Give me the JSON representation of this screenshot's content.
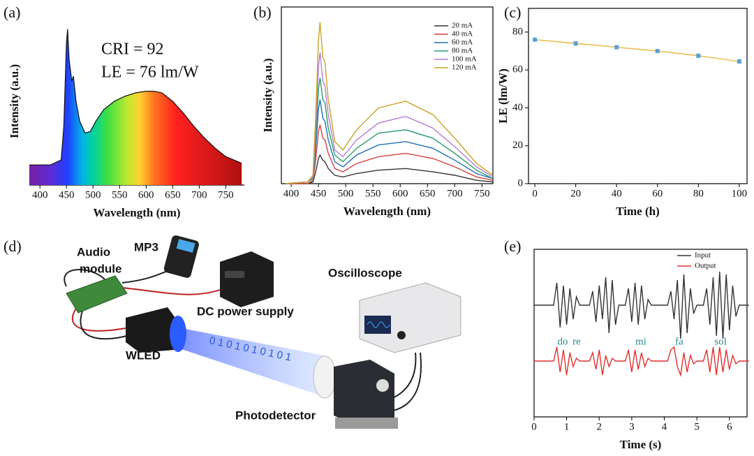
{
  "chart_data": [
    {
      "type": "area",
      "panel_label": "(a)",
      "xlabel": "Wavelength (nm)",
      "ylabel": "Intensity (a.u.)",
      "annotations": [
        "CRI = 92",
        "LE = 76 lm/W"
      ],
      "x": [
        380,
        420,
        440,
        445,
        450,
        452,
        455,
        460,
        463,
        468,
        475,
        485,
        495,
        505,
        520,
        540,
        560,
        580,
        600,
        615,
        630,
        650,
        670,
        690,
        710,
        730,
        750,
        780
      ],
      "values": [
        0.12,
        0.12,
        0.15,
        0.35,
        0.85,
        0.93,
        0.75,
        0.62,
        0.65,
        0.5,
        0.38,
        0.31,
        0.32,
        0.38,
        0.45,
        0.5,
        0.53,
        0.55,
        0.56,
        0.56,
        0.55,
        0.5,
        0.43,
        0.35,
        0.28,
        0.22,
        0.17,
        0.13
      ],
      "xlim": [
        380,
        785
      ],
      "xticks": [
        400,
        450,
        500,
        550,
        600,
        650,
        700,
        750
      ],
      "ylim": [
        0,
        1
      ]
    },
    {
      "type": "line",
      "panel_label": "(b)",
      "xlabel": "Wavelength (nm)",
      "ylabel": "Intensity (a.u.)",
      "legend": "upper right",
      "x": [
        390,
        430,
        440,
        445,
        450,
        453,
        458,
        462,
        468,
        480,
        495,
        520,
        560,
        610,
        660,
        700,
        740,
        770
      ],
      "series": [
        {
          "name": "20 mA",
          "color": "#333333",
          "values": [
            0,
            0,
            0.01,
            0.07,
            0.15,
            0.17,
            0.14,
            0.13,
            0.09,
            0.05,
            0.04,
            0.06,
            0.08,
            0.09,
            0.07,
            0.05,
            0.02,
            0.01
          ]
        },
        {
          "name": "40 mA",
          "color": "#d94040",
          "values": [
            0,
            0,
            0.02,
            0.14,
            0.31,
            0.35,
            0.27,
            0.26,
            0.18,
            0.09,
            0.07,
            0.12,
            0.16,
            0.18,
            0.15,
            0.1,
            0.04,
            0.02
          ]
        },
        {
          "name": "60 mA",
          "color": "#1f6fb4",
          "values": [
            0,
            0.01,
            0.03,
            0.21,
            0.44,
            0.5,
            0.39,
            0.37,
            0.26,
            0.13,
            0.1,
            0.17,
            0.23,
            0.25,
            0.21,
            0.14,
            0.06,
            0.03
          ]
        },
        {
          "name": "80 mA",
          "color": "#2a9d6a",
          "values": [
            0,
            0.01,
            0.03,
            0.26,
            0.56,
            0.63,
            0.5,
            0.48,
            0.33,
            0.17,
            0.13,
            0.21,
            0.3,
            0.32,
            0.27,
            0.18,
            0.08,
            0.03
          ]
        },
        {
          "name": "100 mA",
          "color": "#b57cd6",
          "values": [
            0,
            0.01,
            0.04,
            0.32,
            0.69,
            0.78,
            0.61,
            0.58,
            0.41,
            0.2,
            0.16,
            0.26,
            0.36,
            0.4,
            0.33,
            0.22,
            0.1,
            0.04
          ]
        },
        {
          "name": "120 mA",
          "color": "#c9a227",
          "values": [
            0,
            0.01,
            0.05,
            0.4,
            0.85,
            0.96,
            0.75,
            0.72,
            0.5,
            0.25,
            0.2,
            0.32,
            0.45,
            0.49,
            0.41,
            0.27,
            0.12,
            0.05
          ]
        }
      ],
      "xlim": [
        382,
        770
      ],
      "xticks": [
        400,
        450,
        500,
        550,
        600,
        650,
        700,
        750
      ],
      "ylim": [
        0,
        1.05
      ]
    },
    {
      "type": "line",
      "panel_label": "(c)",
      "xlabel": "Time (h)",
      "ylabel": "LE (lm/W)",
      "x": [
        0,
        20,
        40,
        60,
        80,
        100
      ],
      "values": [
        76,
        74,
        72,
        70,
        67.5,
        64.5
      ],
      "color": "#e8c050",
      "marker_color": "#5aa0d8",
      "xlim": [
        -3.1,
        103.8
      ],
      "xticks": [
        0,
        20,
        40,
        60,
        80,
        100
      ],
      "ylim": [
        0,
        92.5
      ],
      "yticks": [
        0,
        20,
        40,
        60,
        80
      ]
    },
    {
      "type": "line",
      "panel_label": "(e)",
      "xlabel": "Time (s)",
      "legend": "upper right",
      "annotations": [
        "do",
        "re",
        "mi",
        "fa",
        "sol"
      ],
      "x": [
        0,
        0.1,
        0.2,
        0.3,
        0.4,
        0.5,
        0.6,
        0.7,
        0.8,
        0.9,
        1,
        1.1,
        1.2,
        1.3,
        1.4,
        1.5,
        1.6,
        1.7,
        1.8,
        1.9,
        2,
        2.1,
        2.2,
        2.3,
        2.4,
        2.5,
        2.6,
        2.7,
        2.8,
        2.9,
        3,
        3.1,
        3.2,
        3.3,
        3.4,
        3.5,
        3.6,
        3.7,
        3.8,
        3.9,
        4,
        4.1,
        4.2,
        4.3,
        4.4,
        4.5,
        4.6,
        4.7,
        4.8,
        4.9,
        5,
        5.1,
        5.2,
        5.3,
        5.4,
        5.5,
        5.6,
        5.7,
        5.8,
        5.9,
        6,
        6.1,
        6.2,
        6.3,
        6.4,
        6.5,
        6.6
      ],
      "series": [
        {
          "name": "Input",
          "color": "#333333",
          "values": [
            1,
            1,
            1,
            1,
            1,
            1,
            1,
            1.8,
            0.2,
            1.7,
            0.3,
            1.6,
            0.5,
            1.3,
            1,
            1,
            1,
            1,
            1.5,
            0.4,
            1.7,
            0.5,
            2,
            0,
            1.9,
            0.3,
            1,
            1,
            1,
            1.6,
            0.4,
            1.8,
            0.3,
            1.7,
            0.5,
            1.2,
            1,
            1,
            1,
            1,
            1,
            1,
            1.5,
            0.5,
            1.9,
            -0.2,
            2.1,
            0,
            1.6,
            0.7,
            1,
            1,
            1,
            1.6,
            0.3,
            2,
            -0.1,
            2.2,
            -0.2,
            2.1,
            0.1,
            1.7,
            0.6,
            1,
            1,
            1,
            1
          ]
        },
        {
          "name": "Output",
          "color": "#e03030",
          "values": [
            -1,
            -1,
            -1,
            -1,
            -1,
            -1,
            -1,
            -0.5,
            -1.4,
            -0.6,
            -1.5,
            -0.7,
            -1.2,
            -0.9,
            -1,
            -1,
            -1,
            -1,
            -0.7,
            -1.3,
            -0.6,
            -1.5,
            -0.8,
            -1.2,
            -0.9,
            -1,
            -1,
            -1,
            -1,
            -0.6,
            -1.4,
            -0.6,
            -1.3,
            -0.7,
            -1.2,
            -0.9,
            -1,
            -1,
            -1,
            -1,
            -1,
            -1,
            -0.6,
            -0.5,
            -1.2,
            -1.5,
            -0.7,
            -1.4,
            -0.8,
            -1.1,
            -1,
            -1,
            -1,
            -0.6,
            -1.4,
            -0.5,
            -1.5,
            -0.5,
            -1.4,
            -0.6,
            -1.3,
            -0.8,
            -1.1,
            -1,
            -1,
            -1,
            -1
          ]
        }
      ],
      "xlim": [
        0,
        6.54
      ],
      "xticks": [
        0,
        1,
        2,
        3,
        4,
        5,
        6
      ],
      "ylim": [
        -3,
        3
      ]
    }
  ],
  "diagram": {
    "panel_label": "(d)",
    "audio_module": [
      "Audio",
      "module"
    ],
    "mp3": "MP3",
    "power": "DC power supply",
    "oscilloscope": "Oscilloscope",
    "wled": "WLED",
    "photodetector": "Photodetector",
    "beam_bits": "0101010101"
  }
}
